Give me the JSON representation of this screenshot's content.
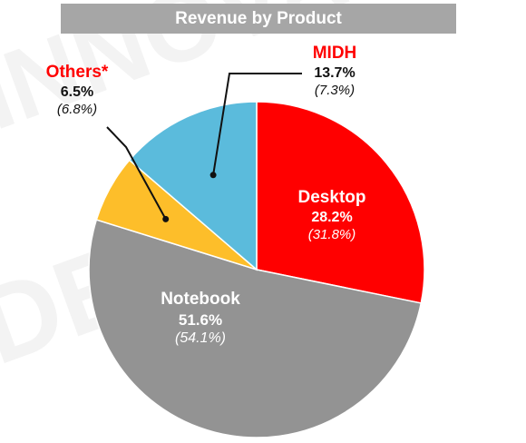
{
  "chart_data": {
    "type": "pie",
    "title": "Revenue by Product",
    "start_angle_deg": 0,
    "direction": "clockwise",
    "slices": [
      {
        "name": "Desktop",
        "value": 28.2,
        "value_label": "28.2%",
        "previous_label": "(31.8%)",
        "color": "#ff0000"
      },
      {
        "name": "Notebook",
        "value": 51.6,
        "value_label": "51.6%",
        "previous_label": "(54.1%)",
        "color": "#939393"
      },
      {
        "name": "Others*",
        "value": 6.5,
        "value_label": "6.5%",
        "previous_label": "(6.8%)",
        "color": "#fdbe2a"
      },
      {
        "name": "MIDH",
        "value": 13.7,
        "value_label": "13.7%",
        "previous_label": "(7.3%)",
        "color": "#5bbbdc"
      }
    ]
  }
}
